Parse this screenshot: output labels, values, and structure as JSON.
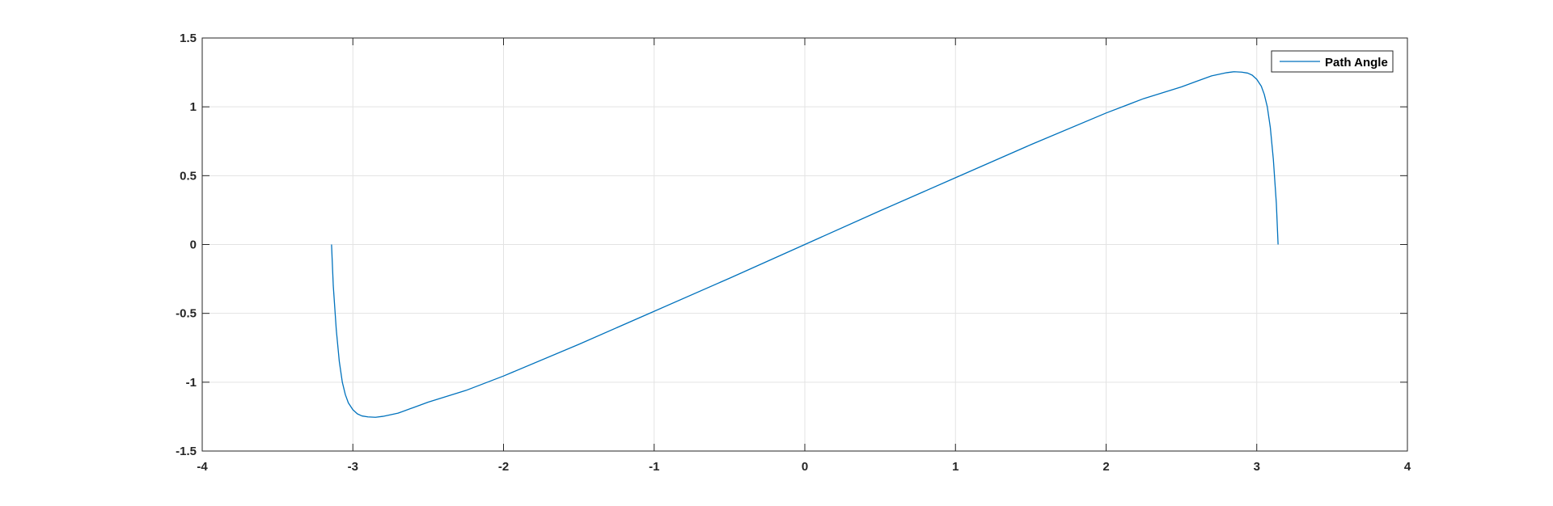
{
  "chart_data": {
    "type": "line",
    "title": "",
    "xlabel": "",
    "ylabel": "",
    "xlim": [
      -4,
      4
    ],
    "ylim": [
      -1.5,
      1.5
    ],
    "xticks": [
      -4,
      -3,
      -2,
      -1,
      0,
      1,
      2,
      3,
      4
    ],
    "yticks": [
      -1.5,
      -1,
      -0.5,
      0,
      0.5,
      1,
      1.5
    ],
    "xtick_labels": [
      "-4",
      "-3",
      "-2",
      "-1",
      "0",
      "1",
      "2",
      "3",
      "4"
    ],
    "ytick_labels": [
      "-1.5",
      "-1",
      "-0.5",
      "0",
      "0.5",
      "1",
      "1.5"
    ],
    "grid": true,
    "legend_position": "top-right",
    "series": [
      {
        "name": "Path Angle",
        "color": "#0072BD",
        "x": [
          -3.1416,
          -3.13,
          -3.11,
          -3.09,
          -3.07,
          -3.05,
          -3.03,
          -3.0,
          -2.97,
          -2.94,
          -2.9,
          -2.85,
          -2.8,
          -2.7,
          -2.6,
          -2.5,
          -2.25,
          -2.0,
          -1.5,
          -1.0,
          -0.5,
          0.0,
          0.5,
          1.0,
          1.5,
          2.0,
          2.25,
          2.5,
          2.6,
          2.7,
          2.8,
          2.85,
          2.9,
          2.94,
          2.97,
          3.0,
          3.03,
          3.05,
          3.07,
          3.09,
          3.11,
          3.13,
          3.1416
        ],
        "y": [
          0.0,
          -0.3,
          -0.62,
          -0.85,
          -1.0,
          -1.09,
          -1.15,
          -1.2,
          -1.23,
          -1.245,
          -1.252,
          -1.255,
          -1.248,
          -1.225,
          -1.185,
          -1.145,
          -1.06,
          -0.955,
          -0.725,
          -0.485,
          -0.245,
          0.0,
          0.245,
          0.485,
          0.725,
          0.955,
          1.06,
          1.145,
          1.185,
          1.225,
          1.248,
          1.255,
          1.252,
          1.245,
          1.23,
          1.2,
          1.15,
          1.09,
          1.0,
          0.85,
          0.62,
          0.3,
          0.0
        ]
      }
    ]
  }
}
